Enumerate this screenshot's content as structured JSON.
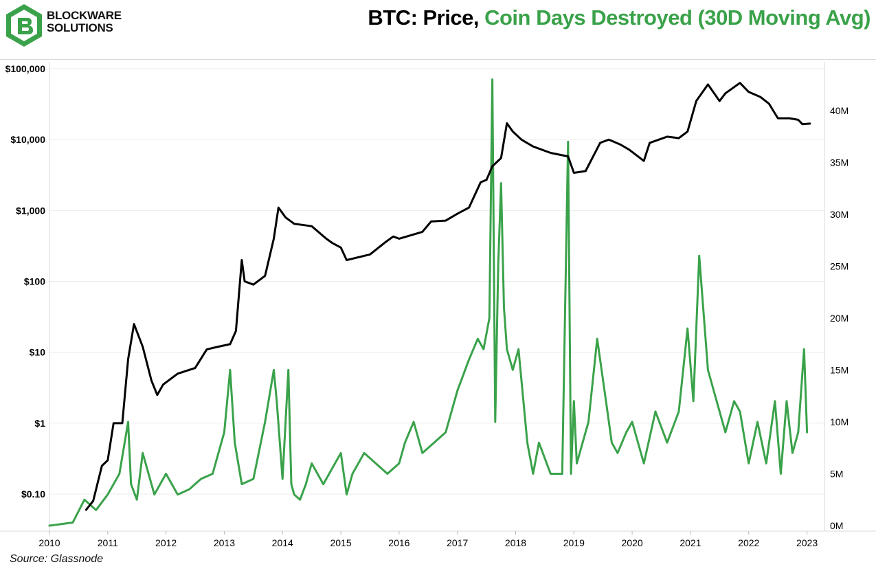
{
  "brand": {
    "name_line1": "BLOCKWARE",
    "name_line2": "SOLUTIONS",
    "color": "#3aa24a"
  },
  "title": {
    "part1": "BTC: Price, ",
    "part2": "Coin Days Destroyed (30D Moving Avg)"
  },
  "source": "Source: Glassnode",
  "chart_data": {
    "type": "line",
    "title": "BTC: Price, Coin Days Destroyed (30D Moving Avg)",
    "x_ticks": [
      "2010",
      "2011",
      "2012",
      "2013",
      "2014",
      "2015",
      "2016",
      "2017",
      "2018",
      "2019",
      "2020",
      "2021",
      "2022",
      "2023"
    ],
    "y_left": {
      "scale": "log",
      "ticks": [
        "$100,000",
        "$10,000",
        "$1,000",
        "$100",
        "$10",
        "$1",
        "$0.10"
      ],
      "tick_values": [
        100000,
        10000,
        1000,
        100,
        10,
        1,
        0.1
      ],
      "range": [
        0.03,
        100000
      ]
    },
    "y_right": {
      "scale": "linear",
      "ticks": [
        "40M",
        "35M",
        "30M",
        "25M",
        "20M",
        "15M",
        "10M",
        "5M",
        "0M"
      ],
      "tick_values": [
        40,
        35,
        30,
        25,
        20,
        15,
        10,
        5,
        0
      ],
      "range": [
        0,
        43.5
      ],
      "unit": "million coin days"
    },
    "series": [
      {
        "name": "BTC Price",
        "axis": "left",
        "color": "#000000",
        "x": [
          2010.63,
          2010.75,
          2010.9,
          2011.0,
          2011.1,
          2011.25,
          2011.35,
          2011.45,
          2011.6,
          2011.75,
          2011.85,
          2011.95,
          2012.2,
          2012.5,
          2012.7,
          2012.9,
          2013.1,
          2013.2,
          2013.3,
          2013.35,
          2013.5,
          2013.7,
          2013.85,
          2013.93,
          2014.05,
          2014.2,
          2014.5,
          2014.75,
          2014.85,
          2015.0,
          2015.1,
          2015.5,
          2015.75,
          2015.9,
          2016.0,
          2016.4,
          2016.55,
          2016.8,
          2017.0,
          2017.2,
          2017.4,
          2017.5,
          2017.6,
          2017.75,
          2017.85,
          2017.95,
          2018.1,
          2018.3,
          2018.6,
          2018.9,
          2019.0,
          2019.2,
          2019.45,
          2019.6,
          2019.8,
          2019.95,
          2020.2,
          2020.3,
          2020.6,
          2020.8,
          2020.95,
          2021.1,
          2021.3,
          2021.5,
          2021.6,
          2021.85,
          2022.0,
          2022.2,
          2022.35,
          2022.5,
          2022.7,
          2022.85,
          2022.92,
          2023.05
        ],
        "values": [
          0.06,
          0.08,
          0.25,
          0.3,
          1,
          1,
          8,
          25,
          12,
          4,
          2.5,
          3.5,
          5,
          6,
          11,
          12,
          13,
          20,
          200,
          100,
          90,
          120,
          400,
          1100,
          800,
          650,
          600,
          400,
          350,
          300,
          200,
          240,
          350,
          430,
          400,
          500,
          700,
          720,
          900,
          1100,
          2500,
          2700,
          4200,
          5500,
          17000,
          13000,
          10000,
          8000,
          6500,
          5800,
          3400,
          3600,
          9000,
          10000,
          8500,
          7200,
          5000,
          9000,
          11000,
          10500,
          13000,
          35000,
          60000,
          35000,
          45000,
          63000,
          47000,
          40000,
          32000,
          20000,
          20000,
          19000,
          16500,
          16800
        ]
      },
      {
        "name": "Coin Days Destroyed (30D Moving Avg)",
        "axis": "right",
        "color": "#3aa24a",
        "x": [
          2010.0,
          2010.4,
          2010.6,
          2010.8,
          2011.0,
          2011.2,
          2011.35,
          2011.4,
          2011.5,
          2011.6,
          2011.8,
          2011.9,
          2012.0,
          2012.2,
          2012.4,
          2012.6,
          2012.8,
          2013.0,
          2013.1,
          2013.18,
          2013.3,
          2013.5,
          2013.7,
          2013.85,
          2013.9,
          2014.0,
          2014.1,
          2014.15,
          2014.2,
          2014.3,
          2014.4,
          2014.5,
          2014.7,
          2014.9,
          2015.0,
          2015.1,
          2015.2,
          2015.4,
          2015.6,
          2015.8,
          2016.0,
          2016.1,
          2016.25,
          2016.4,
          2016.6,
          2016.8,
          2017.0,
          2017.2,
          2017.35,
          2017.45,
          2017.55,
          2017.6,
          2017.65,
          2017.7,
          2017.75,
          2017.8,
          2017.85,
          2017.95,
          2018.05,
          2018.2,
          2018.3,
          2018.4,
          2018.6,
          2018.8,
          2018.9,
          2018.95,
          2019.0,
          2019.05,
          2019.15,
          2019.25,
          2019.4,
          2019.55,
          2019.65,
          2019.75,
          2019.9,
          2020.0,
          2020.2,
          2020.4,
          2020.6,
          2020.8,
          2020.95,
          2021.05,
          2021.15,
          2021.3,
          2021.45,
          2021.6,
          2021.75,
          2021.85,
          2022.0,
          2022.15,
          2022.3,
          2022.45,
          2022.55,
          2022.65,
          2022.75,
          2022.85,
          2022.95,
          2023.0
        ],
        "values": [
          0,
          0.3,
          2.5,
          1.5,
          3,
          5,
          10,
          4,
          2.5,
          7,
          3,
          4,
          5,
          3,
          3.5,
          4.5,
          5,
          9,
          15,
          8,
          4,
          4.5,
          10,
          15,
          12,
          4.5,
          15,
          4,
          3,
          2.5,
          4,
          6,
          4,
          6,
          7,
          3,
          5,
          7,
          6,
          5,
          6,
          8,
          10,
          7,
          8,
          9,
          13,
          16,
          18,
          17,
          20,
          43,
          10,
          25,
          33,
          21,
          17,
          15,
          17,
          8,
          5,
          8,
          5,
          5,
          37,
          5,
          12,
          6,
          8,
          10,
          18,
          12,
          8,
          7,
          9,
          10,
          6,
          11,
          8,
          11,
          19,
          12,
          26,
          15,
          12,
          9,
          12,
          11,
          6,
          10,
          6,
          12,
          5,
          12,
          7,
          9,
          17,
          9
        ]
      }
    ]
  }
}
